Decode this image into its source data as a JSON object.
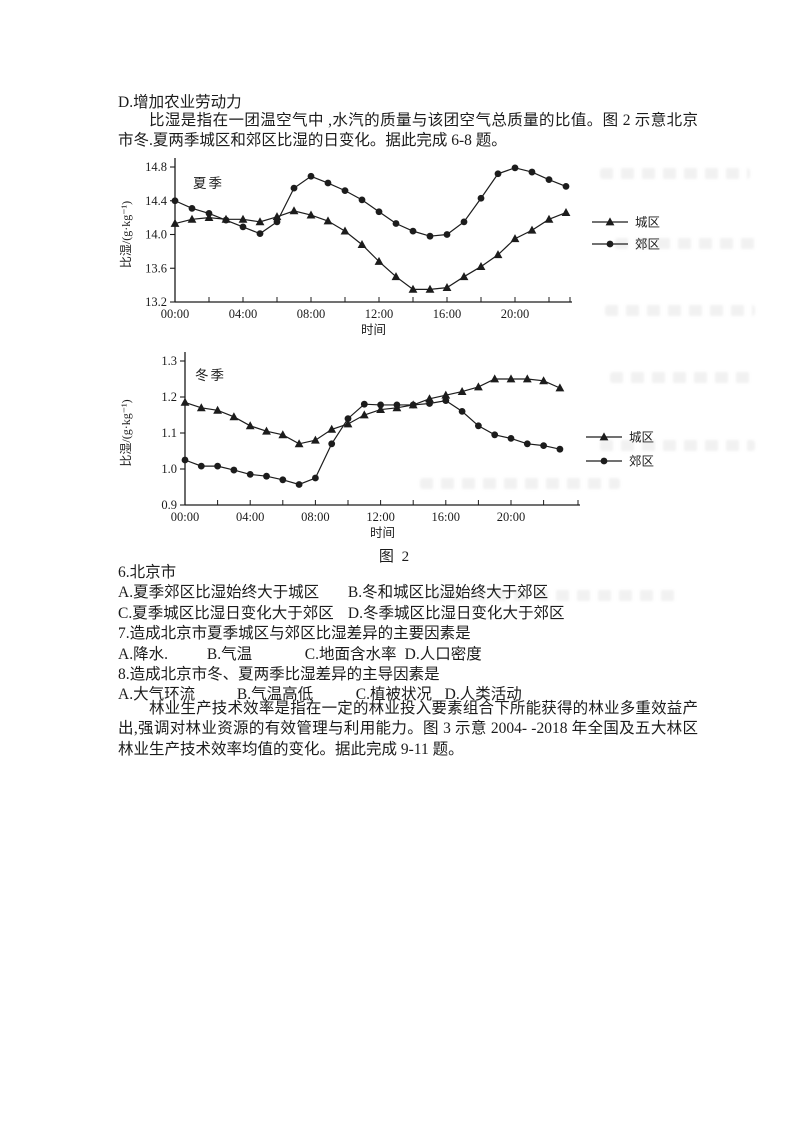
{
  "page": {
    "prev_option": "D.增加农业劳动力",
    "intro_paragraph": "比湿是指在一团温空气中 ,水汽的质量与该团空气总质量的比值。图 2 示意北京市冬.夏两季城区和郊区比湿的日变化。据此完成 6-8 题。",
    "figure2_caption": "图 2",
    "closing_paragraph": "林业生产技术效率是指在一定的林业投入要素组合下所能获得的林业多重效益产出,强调对林业资源的有效管理与利用能力。图 3 示意 2004- -2018 年全国及五大林区林业生产技术效率均值的变化。据此完成 9-11 题。"
  },
  "questions": {
    "q6": {
      "stem": "6.北京市",
      "options": [
        "A.夏季郊区比湿始终大于城区",
        "B.冬和城区比湿始终大于郊区",
        "C.夏季城区比湿日变化大于郊区",
        "D.冬季城区比湿日变化大于郊区"
      ]
    },
    "q7": {
      "stem": "7.造成北京市夏季城区与郊区比湿差异的主要因素是",
      "options": [
        "A.降水.",
        "B.气温",
        "C.地面含水率",
        "D.人口密度"
      ]
    },
    "q8": {
      "stem": "8.造成北京市冬、夏两季比湿差异的主导因素是",
      "options": [
        "A.大气环流",
        "B.气温高低",
        "C.植被状况",
        "D.人类活动"
      ]
    }
  },
  "chart_data": [
    {
      "type": "line",
      "season_label": "夏季",
      "xlabel": "时间",
      "ylabel": "比湿/(g·kg⁻¹)",
      "x": [
        0,
        1,
        2,
        3,
        4,
        5,
        6,
        7,
        8,
        9,
        10,
        11,
        12,
        13,
        14,
        15,
        16,
        17,
        18,
        19,
        20,
        21,
        22,
        23
      ],
      "x_tick_hours": [
        0,
        4,
        8,
        12,
        16,
        20
      ],
      "x_tick_labels": [
        "00:00",
        "04:00",
        "08:00",
        "12:00",
        "16:00",
        "20:00"
      ],
      "minor_tick_step_hours": 2,
      "ylim": [
        13.2,
        14.8
      ],
      "y_ticks": [
        "13.2",
        "13.6",
        "14.0",
        "14.4",
        "14.8"
      ],
      "grid": false,
      "legend_position": "right",
      "series": [
        {
          "name": "城区",
          "marker": "triangle",
          "values": [
            14.13,
            14.18,
            14.2,
            14.18,
            14.18,
            14.15,
            14.21,
            14.28,
            14.23,
            14.16,
            14.04,
            13.88,
            13.68,
            13.5,
            13.35,
            13.35,
            13.37,
            13.5,
            13.62,
            13.76,
            13.95,
            14.05,
            14.18,
            14.26
          ]
        },
        {
          "name": "郊区",
          "marker": "circle",
          "values": [
            14.4,
            14.31,
            14.25,
            14.17,
            14.09,
            14.01,
            14.15,
            14.55,
            14.69,
            14.61,
            14.52,
            14.41,
            14.27,
            14.13,
            14.04,
            13.98,
            14.0,
            14.15,
            14.43,
            14.72,
            14.79,
            14.74,
            14.65,
            14.57
          ]
        }
      ]
    },
    {
      "type": "line",
      "season_label": "冬季",
      "xlabel": "时间",
      "ylabel": "比湿/(g·kg⁻¹)",
      "x": [
        0,
        1,
        2,
        3,
        4,
        5,
        6,
        7,
        8,
        9,
        10,
        11,
        12,
        13,
        14,
        15,
        16,
        17,
        18,
        19,
        20,
        21,
        22,
        23
      ],
      "x_tick_hours": [
        0,
        4,
        8,
        12,
        16,
        20
      ],
      "x_tick_labels": [
        "00:00",
        "04:00",
        "08:00",
        "12:00",
        "16:00",
        "20:00"
      ],
      "minor_tick_step_hours": 2,
      "ylim": [
        0.9,
        1.3
      ],
      "y_ticks": [
        "0.9",
        "1.0",
        "1.1",
        "1.2",
        "1.3"
      ],
      "grid": false,
      "legend_position": "right",
      "series": [
        {
          "name": "城区",
          "marker": "triangle",
          "values": [
            1.185,
            1.17,
            1.163,
            1.145,
            1.12,
            1.105,
            1.095,
            1.07,
            1.08,
            1.11,
            1.125,
            1.15,
            1.165,
            1.17,
            1.178,
            1.195,
            1.205,
            1.215,
            1.228,
            1.25,
            1.25,
            1.25,
            1.245,
            1.225
          ]
        },
        {
          "name": "郊区",
          "marker": "circle",
          "values": [
            1.025,
            1.008,
            1.008,
            0.997,
            0.985,
            0.98,
            0.97,
            0.957,
            0.975,
            1.07,
            1.14,
            1.18,
            1.178,
            1.178,
            1.178,
            1.182,
            1.19,
            1.16,
            1.12,
            1.095,
            1.085,
            1.07,
            1.065,
            1.055
          ]
        }
      ]
    }
  ]
}
